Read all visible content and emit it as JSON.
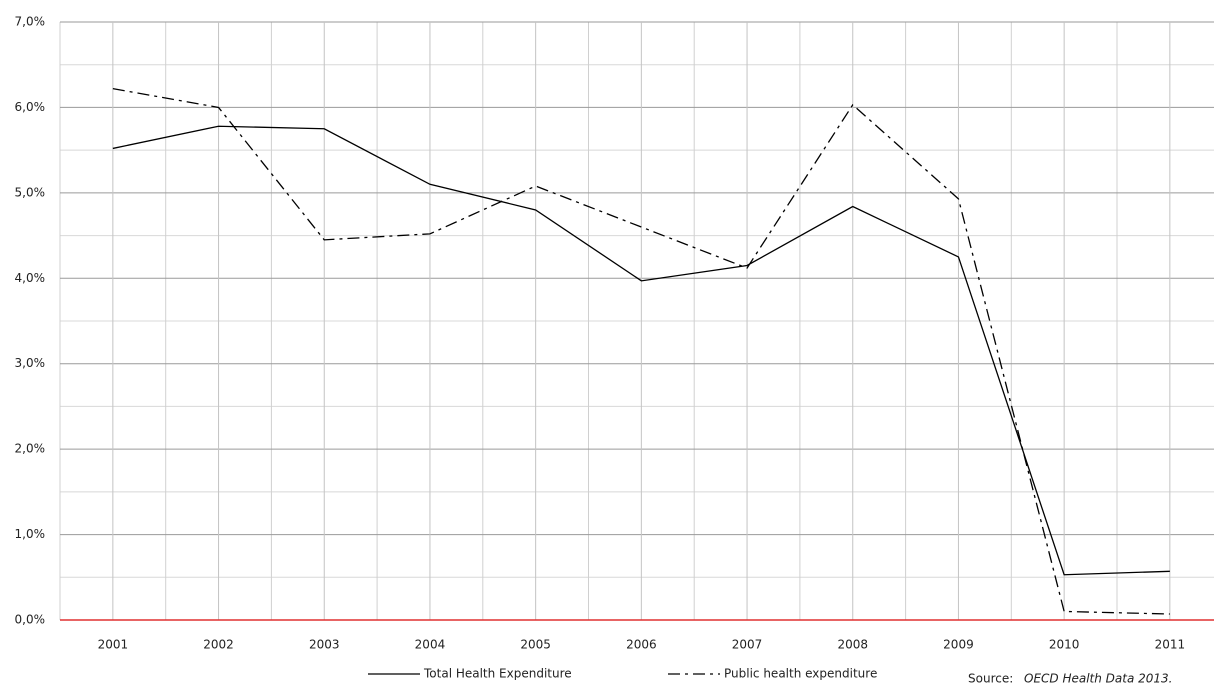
{
  "chart_data": {
    "type": "line",
    "categories": [
      "2001",
      "2002",
      "2003",
      "2004",
      "2005",
      "2006",
      "2007",
      "2008",
      "2009",
      "2010",
      "2011"
    ],
    "series": [
      {
        "name": "Total Health Expenditure",
        "color": "#000000",
        "dash": "solid",
        "values": [
          5.52,
          5.78,
          5.75,
          5.1,
          4.8,
          3.97,
          4.15,
          4.84,
          4.25,
          0.53,
          0.57
        ]
      },
      {
        "name": "Public health expenditure",
        "color": "#000000",
        "dash": "dash-dot",
        "values": [
          6.22,
          6.0,
          4.45,
          4.52,
          5.08,
          4.6,
          4.12,
          6.03,
          4.93,
          0.1,
          0.07
        ]
      }
    ],
    "ylim": [
      0,
      7
    ],
    "yticks": [
      {
        "value": 0,
        "label": "0,0%"
      },
      {
        "value": 1,
        "label": "1,0%"
      },
      {
        "value": 2,
        "label": "2,0%"
      },
      {
        "value": 3,
        "label": "3,0%"
      },
      {
        "value": 4,
        "label": "4,0%"
      },
      {
        "value": 5,
        "label": "5,0%"
      },
      {
        "value": 6,
        "label": "6,0%"
      },
      {
        "value": 7,
        "label": "7,0%"
      }
    ],
    "grid": true,
    "baseline_color": "#e03030",
    "source_label": "Source:",
    "source": "OECD Health Data 2013."
  }
}
